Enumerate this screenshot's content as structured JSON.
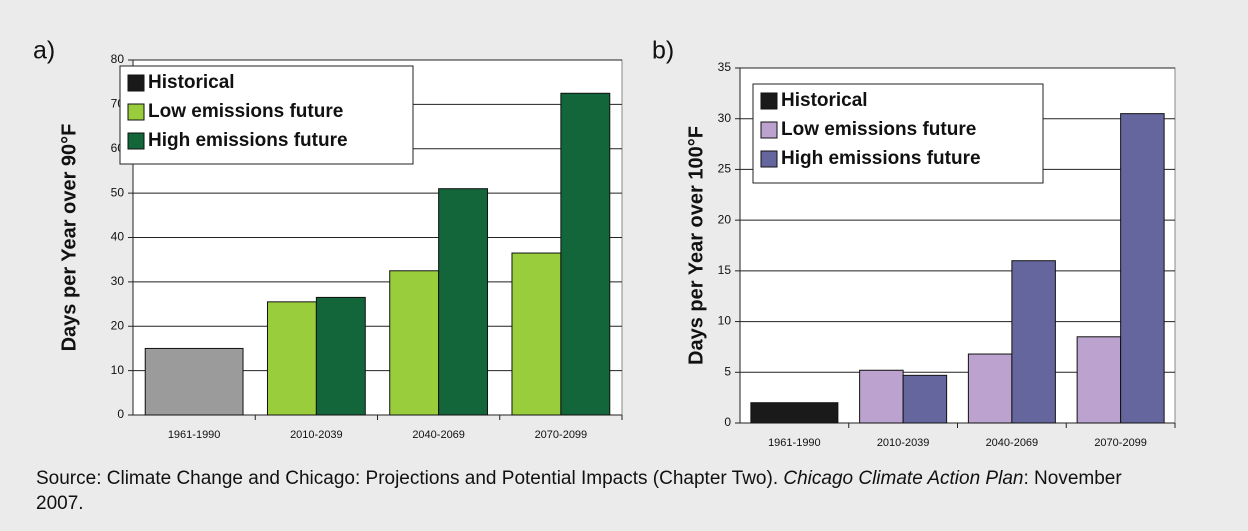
{
  "panels": [
    "a)",
    "b)"
  ],
  "source": [
    "Source: Climate Change and Chicago: Projections and Potential Impacts (Chapter Two). ",
    "Chicago Climate Action Plan",
    ": November 2007."
  ],
  "chart_data": [
    {
      "type": "bar",
      "y_label": "Days per Year over 90°F",
      "categories": [
        "1961-1990",
        "2010-2039",
        "2040-2069",
        "2070-2099"
      ],
      "series": [
        {
          "name": "Historical",
          "color": "#1a1a1a",
          "bar_color": "#9b9b9b",
          "values": [
            15,
            null,
            null,
            null
          ]
        },
        {
          "name": "Low emissions future",
          "color": "#9acd3c",
          "values": [
            null,
            25.5,
            32.5,
            36.5
          ]
        },
        {
          "name": "High emissions future",
          "color": "#13653a",
          "values": [
            null,
            26.5,
            51,
            72.5
          ]
        }
      ],
      "ylim": [
        0,
        80
      ],
      "yticks": [
        0,
        10,
        20,
        30,
        40,
        50,
        60,
        70,
        80
      ],
      "grid": true,
      "legend": "top-left"
    },
    {
      "type": "bar",
      "y_label": "Days per Year over 100°F",
      "categories": [
        "1961-1990",
        "2010-2039",
        "2040-2069",
        "2070-2099"
      ],
      "series": [
        {
          "name": "Historical",
          "color": "#1a1a1a",
          "values": [
            2,
            null,
            null,
            null
          ]
        },
        {
          "name": "Low emissions future",
          "color": "#bba2cf",
          "values": [
            null,
            5.2,
            6.8,
            8.5
          ]
        },
        {
          "name": "High emissions future",
          "color": "#65669e",
          "values": [
            null,
            4.7,
            16,
            30.5
          ]
        }
      ],
      "ylim": [
        0,
        35
      ],
      "yticks": [
        0,
        5,
        10,
        15,
        20,
        25,
        30,
        35
      ],
      "grid": true,
      "legend": "top-left"
    }
  ]
}
